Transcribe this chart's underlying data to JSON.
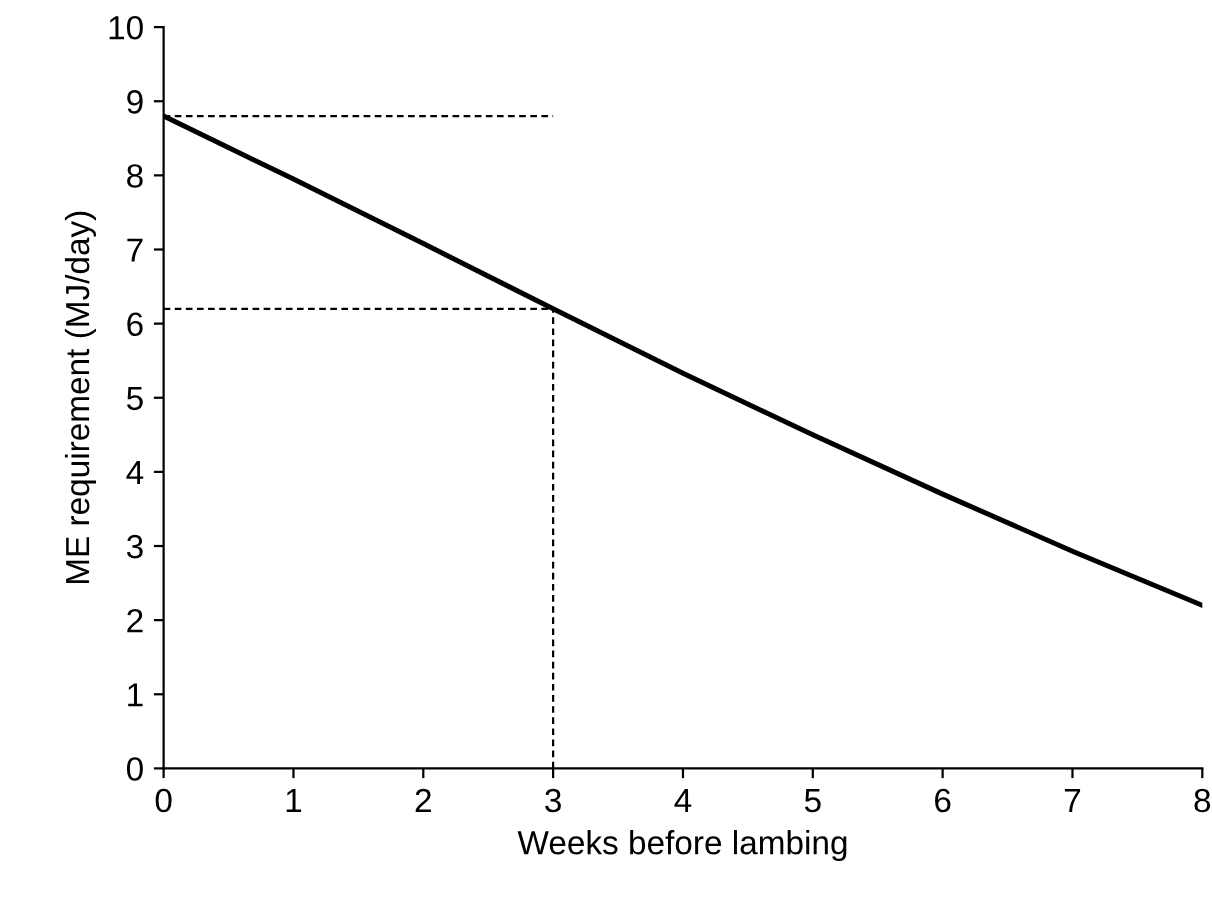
{
  "chart_data": {
    "type": "line",
    "xlabel": "Weeks before lambing",
    "ylabel": "ME requirement (MJ/day)",
    "xlim": [
      0,
      8
    ],
    "ylim": [
      0,
      10
    ],
    "xticks": [
      0,
      1,
      2,
      3,
      4,
      5,
      6,
      7,
      8
    ],
    "yticks": [
      0,
      1,
      2,
      3,
      4,
      5,
      6,
      7,
      8,
      9,
      10
    ],
    "grid": false,
    "legend": false,
    "series": [
      {
        "color": "#000000",
        "x": [
          0,
          1,
          2,
          3,
          4,
          5,
          6,
          7,
          8
        ],
        "values": [
          8.8,
          7.95,
          7.08,
          6.2,
          5.33,
          4.5,
          3.7,
          2.93,
          2.2
        ],
        "line_style": "solid"
      },
      {
        "color": "#000000",
        "x": [
          0,
          3
        ],
        "values": [
          8.8,
          8.8
        ],
        "line_style": "dashed"
      },
      {
        "color": "#000000",
        "x": [
          0,
          3
        ],
        "values": [
          6.2,
          6.2
        ],
        "line_style": "dashed"
      },
      {
        "color": "#000000",
        "x": [
          3,
          3
        ],
        "values": [
          0,
          6.2
        ],
        "line_style": "dashed"
      }
    ]
  }
}
